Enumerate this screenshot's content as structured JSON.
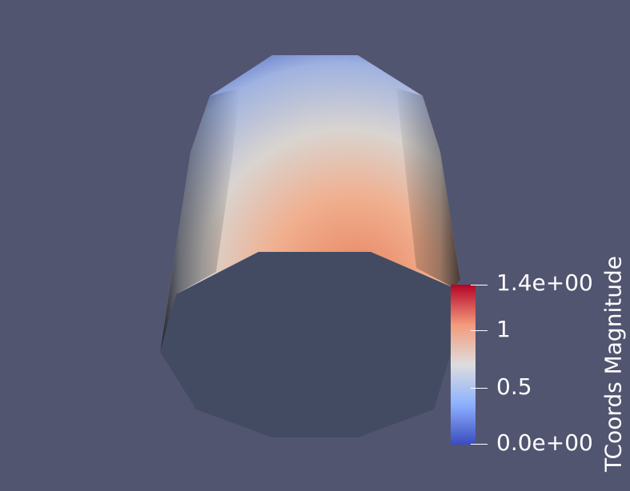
{
  "scene": {
    "object": "cylinder-surface",
    "background_color": "#525570",
    "cap_color": "#434b63"
  },
  "colorbar": {
    "title": "TCoords Magnitude",
    "colormap": "cool-to-warm",
    "colors": [
      "#3b4cc0",
      "#8db0fe",
      "#dddddd",
      "#f49a7b",
      "#b40426"
    ],
    "range": [
      0.0,
      1.4
    ],
    "ticks": [
      {
        "value": 1.4,
        "label": "1.4e+00"
      },
      {
        "value": 1.0,
        "label": "1"
      },
      {
        "value": 0.5,
        "label": "0.5"
      },
      {
        "value": 0.0,
        "label": "0.0e+00"
      }
    ]
  }
}
